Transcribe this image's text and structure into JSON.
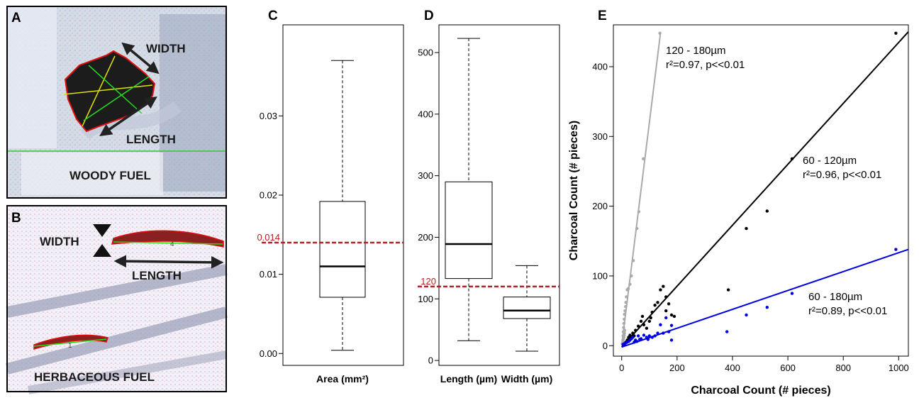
{
  "panels": {
    "A": {
      "letter": "A",
      "width_label": "WIDTH",
      "length_label": "LENGTH",
      "fuel_label": "WOODY FUEL"
    },
    "B": {
      "letter": "B",
      "width_label": "WIDTH",
      "length_label": "LENGTH",
      "fuel_label": "HERBACEOUS FUEL",
      "specimen_labels": [
        "4",
        "1"
      ]
    }
  },
  "chart_data": [
    {
      "panel": "C",
      "type": "box",
      "categories": [
        "Area (mm²)"
      ],
      "boxes": [
        {
          "whisker_low": 0.0004,
          "q1": 0.0071,
          "median": 0.011,
          "q3": 0.0192,
          "whisker_high": 0.037
        }
      ],
      "ylim": [
        -0.0015,
        0.0415
      ],
      "yticks": [
        0.0,
        0.01,
        0.02,
        0.03
      ],
      "ytick_labels": [
        "0.00",
        "0.01",
        "0.02",
        "0.03"
      ],
      "reference_line": {
        "value": 0.014,
        "label": "0.014",
        "color": "#b22222"
      }
    },
    {
      "panel": "D",
      "type": "box",
      "categories": [
        "Length (µm)",
        "Width (µm)"
      ],
      "boxes": [
        {
          "whisker_low": 32,
          "q1": 133,
          "median": 189,
          "q3": 290,
          "whisker_high": 523
        },
        {
          "whisker_low": 15,
          "q1": 68,
          "median": 81,
          "q3": 103,
          "whisker_high": 154
        }
      ],
      "ylim": [
        -8,
        545
      ],
      "yticks": [
        0,
        100,
        200,
        300,
        400,
        500
      ],
      "ytick_labels": [
        "0",
        "100",
        "200",
        "300",
        "400",
        "500"
      ],
      "reference_line": {
        "value": 120,
        "label": "120",
        "color": "#b22222"
      }
    },
    {
      "panel": "E",
      "type": "scatter",
      "xlabel": "Charcoal Count (# pieces)",
      "ylabel": "Charcoal Count (# pieces)",
      "xlim": [
        -30,
        1035
      ],
      "ylim": [
        -15,
        460
      ],
      "xticks": [
        0,
        200,
        400,
        600,
        800,
        1000
      ],
      "xtick_labels": [
        "0",
        "200",
        "400",
        "600",
        "800",
        "1000"
      ],
      "yticks": [
        0,
        100,
        200,
        300,
        400
      ],
      "ytick_labels": [
        "0",
        "100",
        "200",
        "300",
        "400"
      ],
      "series": [
        {
          "color": "#aaaaaa",
          "fit": [
            [
              0,
              0
            ],
            [
              140,
              448
            ]
          ],
          "annotation": [
            "120 - 180µm",
            "r²=0.97, p<<0.01"
          ],
          "points": [
            [
              2,
              3
            ],
            [
              4,
              8
            ],
            [
              5,
              14
            ],
            [
              6,
              20
            ],
            [
              7,
              26
            ],
            [
              8,
              32
            ],
            [
              9,
              38
            ],
            [
              10,
              45
            ],
            [
              12,
              50
            ],
            [
              14,
              56
            ],
            [
              15,
              62
            ],
            [
              17,
              70
            ],
            [
              20,
              80
            ],
            [
              24,
              82
            ],
            [
              30,
              88
            ],
            [
              35,
              100
            ],
            [
              42,
              122
            ],
            [
              55,
              168
            ],
            [
              62,
              192
            ],
            [
              78,
              268
            ],
            [
              138,
              448
            ],
            [
              3,
              2
            ],
            [
              5,
              5
            ],
            [
              6,
              9
            ],
            [
              8,
              12
            ],
            [
              9,
              15
            ],
            [
              10,
              18
            ],
            [
              11,
              22
            ]
          ]
        },
        {
          "color": "#000000",
          "fit": [
            [
              0,
              -2
            ],
            [
              1035,
              450
            ]
          ],
          "annotation": [
            "60 - 120µm",
            "r²=0.96, p<<0.01"
          ],
          "points": [
            [
              10,
              2
            ],
            [
              15,
              5
            ],
            [
              20,
              8
            ],
            [
              25,
              12
            ],
            [
              30,
              15
            ],
            [
              40,
              18
            ],
            [
              50,
              22
            ],
            [
              60,
              28
            ],
            [
              70,
              35
            ],
            [
              75,
              42
            ],
            [
              90,
              25
            ],
            [
              100,
              35
            ],
            [
              110,
              48
            ],
            [
              120,
              58
            ],
            [
              130,
              62
            ],
            [
              140,
              80
            ],
            [
              150,
              85
            ],
            [
              160,
              70
            ],
            [
              170,
              60
            ],
            [
              180,
              44
            ],
            [
              190,
              42
            ],
            [
              385,
              80
            ],
            [
              450,
              168
            ],
            [
              525,
              193
            ],
            [
              615,
              268
            ],
            [
              990,
              448
            ],
            [
              35,
              10
            ],
            [
              45,
              14
            ],
            [
              80,
              30
            ],
            [
              105,
              40
            ],
            [
              160,
              50
            ]
          ]
        },
        {
          "color": "#0000e0",
          "fit": [
            [
              0,
              -2
            ],
            [
              1035,
              138
            ]
          ],
          "annotation": [
            "60 - 180µm",
            "r²=0.89, p<<0.01"
          ],
          "points": [
            [
              5,
              2
            ],
            [
              10,
              3
            ],
            [
              15,
              4
            ],
            [
              20,
              5
            ],
            [
              25,
              6
            ],
            [
              30,
              8
            ],
            [
              35,
              10
            ],
            [
              40,
              12
            ],
            [
              50,
              8
            ],
            [
              60,
              14
            ],
            [
              70,
              10
            ],
            [
              80,
              15
            ],
            [
              90,
              12
            ],
            [
              100,
              14
            ],
            [
              110,
              12
            ],
            [
              120,
              14
            ],
            [
              130,
              18
            ],
            [
              150,
              18
            ],
            [
              170,
              20
            ],
            [
              180,
              8
            ],
            [
              180,
              29
            ],
            [
              380,
              20
            ],
            [
              450,
              44
            ],
            [
              525,
              55
            ],
            [
              615,
              75
            ],
            [
              990,
              138
            ],
            [
              45,
              5
            ],
            [
              55,
              6
            ],
            [
              65,
              9
            ],
            [
              95,
              9
            ],
            [
              140,
              30
            ],
            [
              160,
              40
            ]
          ]
        }
      ]
    }
  ]
}
